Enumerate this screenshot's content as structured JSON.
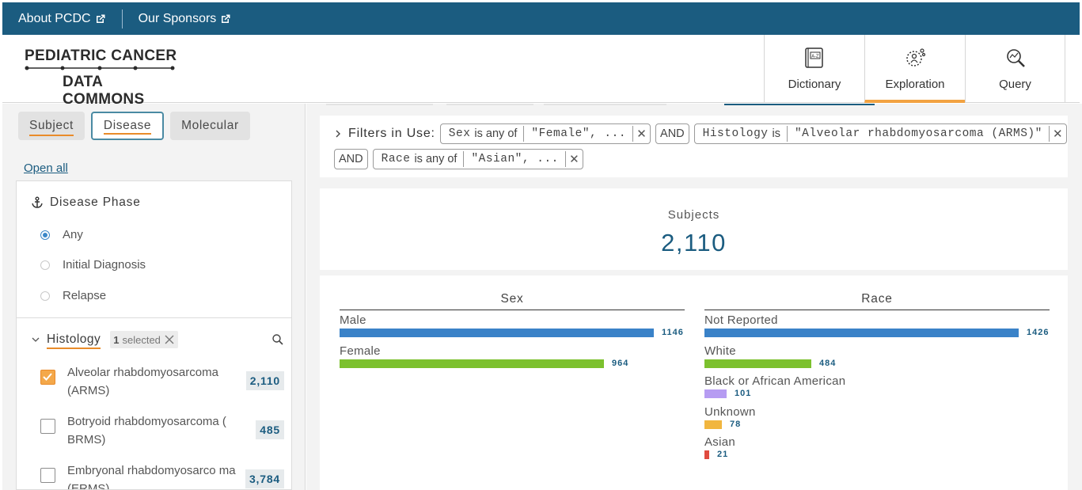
{
  "topbar": {
    "links": [
      "About PCDC",
      "Our Sponsors"
    ]
  },
  "header": {
    "logo_line1": "PEDIATRIC CANCER",
    "logo_line2": "DATA COMMONS",
    "nav": [
      {
        "label": "Dictionary",
        "icon": "dictionary-icon",
        "active": false
      },
      {
        "label": "Exploration",
        "icon": "exploration-icon",
        "active": true
      },
      {
        "label": "Query",
        "icon": "query-icon",
        "active": false
      }
    ]
  },
  "sidebar": {
    "tabs": [
      {
        "label": "Subject",
        "active": false
      },
      {
        "label": "Disease",
        "active": true
      },
      {
        "label": "Molecular",
        "active": false
      }
    ],
    "open_all": "Open all",
    "disease_phase": {
      "title": "Disease Phase",
      "options": [
        {
          "label": "Any",
          "selected": true
        },
        {
          "label": "Initial Diagnosis",
          "selected": false
        },
        {
          "label": "Relapse",
          "selected": false
        }
      ]
    },
    "histology": {
      "title": "Histology",
      "selected_count": "1",
      "selected_text": "selected",
      "options": [
        {
          "label": "Alveolar rhabdomyosarcoma (ARMS)",
          "count": "2,110",
          "checked": true
        },
        {
          "label": "Botryoid rhabdomyosarcoma ( BRMS)",
          "count": "485",
          "checked": false
        },
        {
          "label": "Embryonal rhabdomyosarco ma (ERMS)",
          "count": "3,784",
          "checked": false
        }
      ]
    }
  },
  "filters": {
    "label": "Filters in Use:",
    "and": "AND",
    "items": [
      {
        "field": "Sex",
        "op": "is any of",
        "value": "\"Female\", ..."
      },
      {
        "field": "Histology",
        "op": "is",
        "value": "\"Alveolar rhabdomyosarcoma (ARMS)\""
      },
      {
        "field": "Race",
        "op": "is any of",
        "value": "\"Asian\", ..."
      }
    ]
  },
  "summary": {
    "label": "Subjects",
    "value": "2,110"
  },
  "chart_data": [
    {
      "type": "bar",
      "title": "Sex",
      "categories": [
        "Male",
        "Female"
      ],
      "values": [
        1146,
        964
      ],
      "colors": [
        "#3a82c8",
        "#7cc12e"
      ],
      "max": 1146
    },
    {
      "type": "bar",
      "title": "Race",
      "categories": [
        "Not Reported",
        "White",
        "Black or African American",
        "Unknown",
        "Asian"
      ],
      "values": [
        1426,
        484,
        101,
        78,
        21
      ],
      "colors": [
        "#3a82c8",
        "#7cc12e",
        "#b69cf2",
        "#f1b63f",
        "#e04b3f"
      ],
      "max": 1426
    }
  ]
}
